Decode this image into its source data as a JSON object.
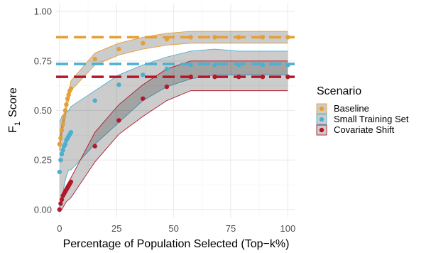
{
  "chart_data": {
    "type": "line",
    "title": "",
    "xlabel": "Percentage of Population Selected (Top−k%)",
    "ylabel_main": "F",
    "ylabel_sub": "1",
    "ylabel_rest": "Score",
    "xlim": [
      -1.5,
      103
    ],
    "ylim": [
      -0.04,
      1.04
    ],
    "xticks": [
      0,
      25,
      50,
      75,
      100
    ],
    "xtick_labels": [
      "0",
      "25",
      "50",
      "75",
      "100"
    ],
    "yticks": [
      0,
      0.25,
      0.5,
      0.75,
      1.0
    ],
    "ytick_labels": [
      "0.00",
      "0.25",
      "0.50",
      "0.75",
      "1.00"
    ],
    "grid": true,
    "legend_title": "Scenario",
    "legend_position": "right",
    "series": [
      {
        "name": "Baseline",
        "color": "#E69F33",
        "reference_line": 0.87,
        "points": [
          [
            0,
            0.33
          ],
          [
            0.5,
            0.36
          ],
          [
            1,
            0.4
          ],
          [
            1.5,
            0.43
          ],
          [
            2,
            0.47
          ],
          [
            2.5,
            0.5
          ],
          [
            3,
            0.53
          ],
          [
            3.5,
            0.56
          ],
          [
            4,
            0.58
          ],
          [
            4.5,
            0.6
          ],
          [
            5,
            0.61
          ],
          [
            15.5,
            0.76
          ],
          [
            26,
            0.81
          ],
          [
            36.5,
            0.84
          ],
          [
            47,
            0.86
          ],
          [
            57.5,
            0.87
          ],
          [
            68,
            0.87
          ],
          [
            78.5,
            0.87
          ],
          [
            89,
            0.87
          ],
          [
            100,
            0.87
          ]
        ],
        "band": [
          [
            0,
            0.3,
            0.36
          ],
          [
            0.5,
            0.34,
            0.39
          ],
          [
            1,
            0.38,
            0.43
          ],
          [
            1.5,
            0.41,
            0.46
          ],
          [
            2,
            0.44,
            0.49
          ],
          [
            2.5,
            0.47,
            0.52
          ],
          [
            3,
            0.5,
            0.55
          ],
          [
            3.5,
            0.53,
            0.58
          ],
          [
            4,
            0.55,
            0.6
          ],
          [
            4.5,
            0.57,
            0.62
          ],
          [
            5,
            0.6,
            0.65
          ],
          [
            15.5,
            0.73,
            0.79
          ],
          [
            26,
            0.78,
            0.84
          ],
          [
            36.5,
            0.81,
            0.87
          ],
          [
            47,
            0.83,
            0.89
          ],
          [
            57.5,
            0.84,
            0.9
          ],
          [
            68,
            0.84,
            0.9
          ],
          [
            78.5,
            0.84,
            0.9
          ],
          [
            89,
            0.84,
            0.9
          ],
          [
            100,
            0.84,
            0.9
          ]
        ]
      },
      {
        "name": "Small Training Set",
        "color": "#4BB0D0",
        "reference_line": 0.735,
        "points": [
          [
            0,
            0.19
          ],
          [
            0.5,
            0.25
          ],
          [
            1,
            0.28
          ],
          [
            1.5,
            0.3
          ],
          [
            2,
            0.32
          ],
          [
            2.5,
            0.33
          ],
          [
            3,
            0.35
          ],
          [
            3.5,
            0.36
          ],
          [
            4,
            0.37
          ],
          [
            4.5,
            0.38
          ],
          [
            5,
            0.39
          ],
          [
            15.5,
            0.55
          ],
          [
            26,
            0.63
          ],
          [
            36.5,
            0.68
          ],
          [
            47,
            0.71
          ],
          [
            57.5,
            0.73
          ],
          [
            68,
            0.73
          ],
          [
            78.5,
            0.73
          ],
          [
            89,
            0.73
          ],
          [
            100,
            0.73
          ]
        ],
        "band": [
          [
            0,
            0.01,
            0.44
          ],
          [
            1,
            0.05,
            0.47
          ],
          [
            2,
            0.12,
            0.48
          ],
          [
            3,
            0.17,
            0.49
          ],
          [
            4,
            0.2,
            0.5
          ],
          [
            5,
            0.2,
            0.52
          ],
          [
            15.5,
            0.33,
            0.6
          ],
          [
            26,
            0.44,
            0.68
          ],
          [
            36.5,
            0.55,
            0.73
          ],
          [
            47,
            0.62,
            0.77
          ],
          [
            57.5,
            0.66,
            0.8
          ],
          [
            68,
            0.68,
            0.81
          ],
          [
            78.5,
            0.68,
            0.8
          ],
          [
            89,
            0.68,
            0.8
          ],
          [
            100,
            0.68,
            0.8
          ]
        ]
      },
      {
        "name": "Covariate Shift",
        "color": "#B2182B",
        "reference_line": 0.67,
        "points": [
          [
            0,
            0.0
          ],
          [
            0.5,
            0.03
          ],
          [
            1,
            0.05
          ],
          [
            1.5,
            0.07
          ],
          [
            2,
            0.08
          ],
          [
            2.5,
            0.09
          ],
          [
            3,
            0.1
          ],
          [
            3.5,
            0.11
          ],
          [
            4,
            0.12
          ],
          [
            4.5,
            0.13
          ],
          [
            5,
            0.14
          ],
          [
            15.5,
            0.32
          ],
          [
            26,
            0.45
          ],
          [
            36.5,
            0.56
          ],
          [
            47,
            0.62
          ],
          [
            57.5,
            0.67
          ],
          [
            68,
            0.67
          ],
          [
            78.5,
            0.67
          ],
          [
            89,
            0.67
          ],
          [
            100,
            0.67
          ]
        ],
        "band": [
          [
            0,
            0.0,
            0.02
          ],
          [
            1,
            0.0,
            0.07
          ],
          [
            2,
            0.02,
            0.1
          ],
          [
            3,
            0.04,
            0.12
          ],
          [
            4,
            0.05,
            0.14
          ],
          [
            5,
            0.06,
            0.16
          ],
          [
            15.5,
            0.24,
            0.39
          ],
          [
            26,
            0.38,
            0.53
          ],
          [
            36.5,
            0.47,
            0.63
          ],
          [
            47,
            0.55,
            0.71
          ],
          [
            57.5,
            0.6,
            0.75
          ],
          [
            68,
            0.6,
            0.75
          ],
          [
            78.5,
            0.6,
            0.75
          ],
          [
            89,
            0.6,
            0.75
          ],
          [
            100,
            0.6,
            0.75
          ]
        ]
      }
    ]
  }
}
